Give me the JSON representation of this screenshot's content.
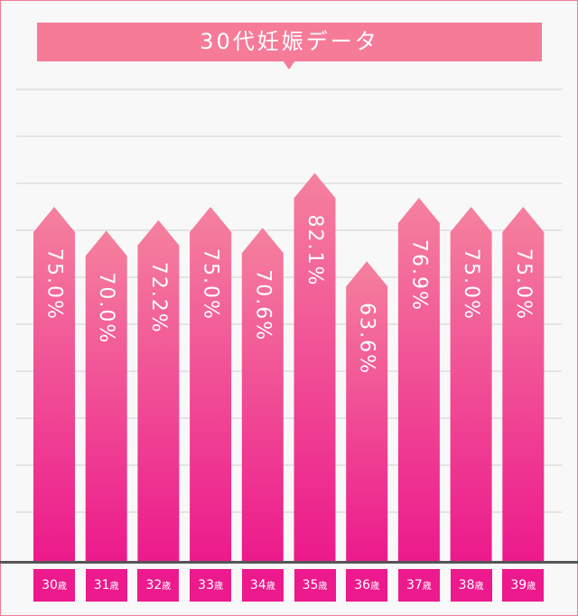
{
  "chart_data": {
    "type": "bar",
    "title": "30代妊娠データ",
    "categories": [
      "30歳",
      "31歳",
      "32歳",
      "33歳",
      "34歳",
      "35歳",
      "36歳",
      "37歳",
      "38歳",
      "39歳"
    ],
    "category_numbers": [
      "30",
      "31",
      "32",
      "33",
      "34",
      "35",
      "36",
      "37",
      "38",
      "39"
    ],
    "category_unit": "歳",
    "values": [
      75.0,
      70.0,
      72.2,
      75.0,
      70.6,
      82.1,
      63.6,
      76.9,
      75.0,
      75.0
    ],
    "value_labels": [
      "75.0%",
      "70.0%",
      "72.2%",
      "75.0%",
      "70.6%",
      "82.1%",
      "63.6%",
      "76.9%",
      "75.0%",
      "75.0%"
    ],
    "grid": true,
    "colors": {
      "bar_top": "#f5819e",
      "bar_bottom": "#ec1a8c",
      "title_bg": "#f57b99",
      "frame": "#f27a98",
      "gridline": "#cfcfcf",
      "baseline": "#555555"
    }
  }
}
